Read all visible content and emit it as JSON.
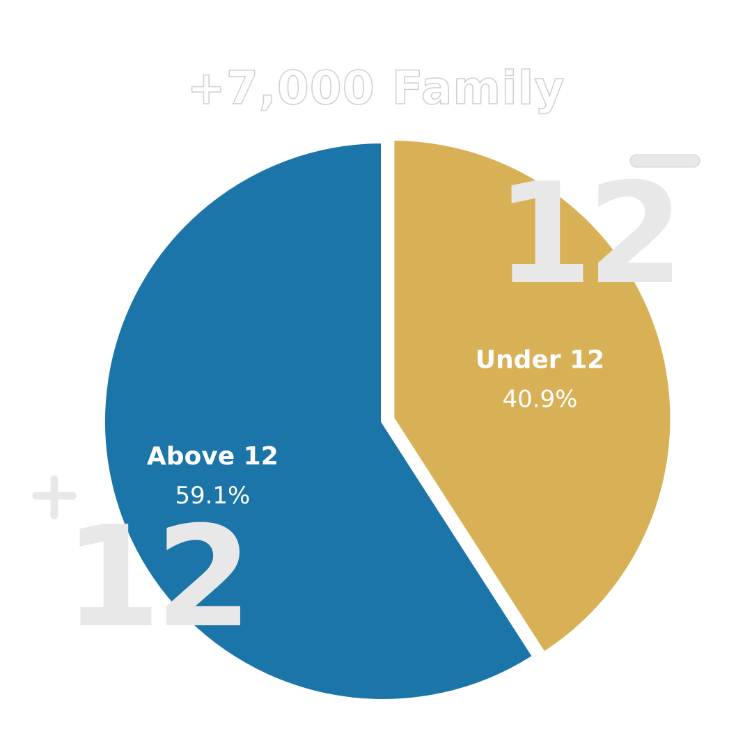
{
  "chart_data": {
    "type": "pie",
    "title": "+7,000 Family",
    "slices": [
      {
        "label": "Under 12",
        "percent_label": "40.9%",
        "value": 40.9,
        "color": "#d8b157"
      },
      {
        "label": "Above 12",
        "percent_label": "59.1%",
        "value": 59.1,
        "color": "#1b75a9"
      }
    ],
    "decorations": {
      "under_badge": {
        "number": "12",
        "sign": "−"
      },
      "above_badge": {
        "number": "12",
        "sign": "+"
      },
      "badge_color": "#e8e8e8"
    }
  }
}
